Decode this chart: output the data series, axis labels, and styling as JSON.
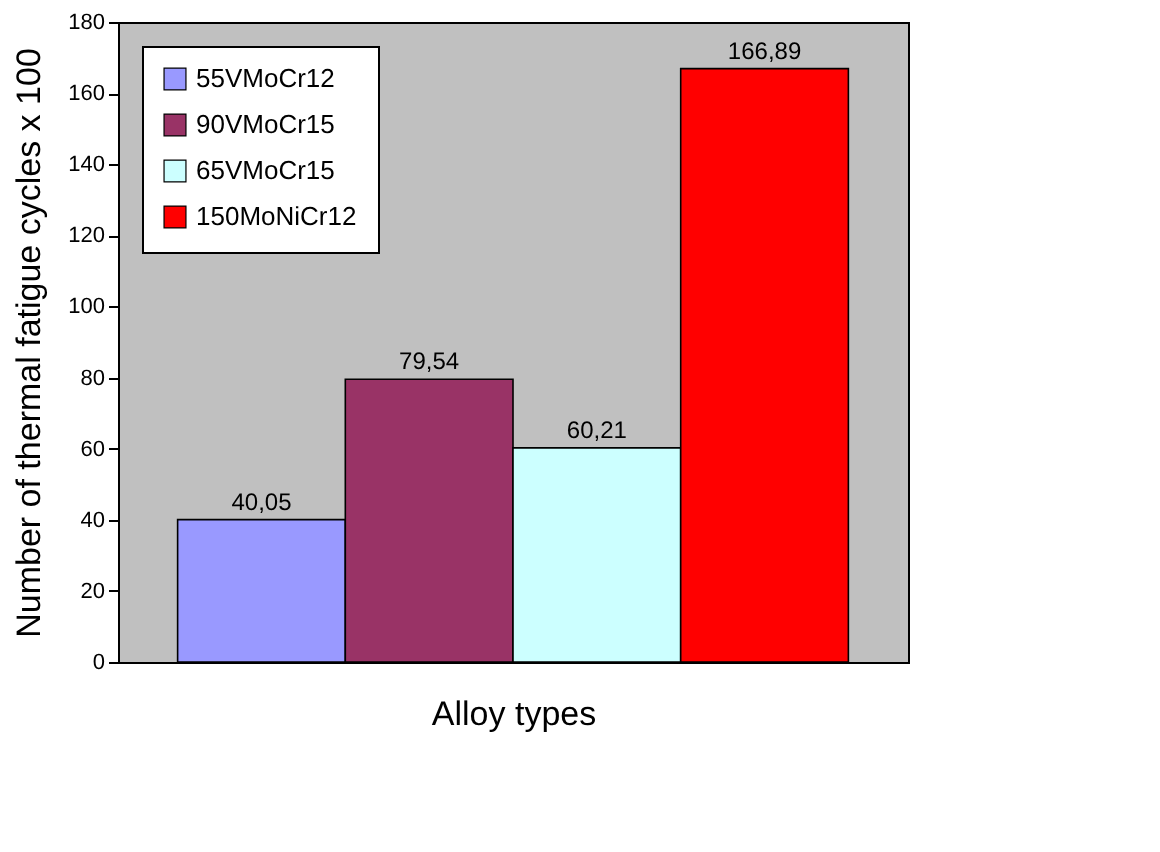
{
  "chart_data": {
    "type": "bar",
    "categories": [
      null
    ],
    "xlabel": "Alloy types",
    "ylabel": "Number of thermal fatigue cycles x 100",
    "ylim": [
      0,
      180
    ],
    "yticks": [
      0,
      20,
      40,
      60,
      80,
      100,
      120,
      140,
      160,
      180
    ],
    "grid": false,
    "legend": "top left",
    "series": [
      {
        "name": "55VMoCr12",
        "color": "#9999ff",
        "values": [
          40.05
        ],
        "value_labels": [
          "40,05"
        ]
      },
      {
        "name": "90VMoCr15",
        "color": "#993366",
        "values": [
          79.54
        ],
        "value_labels": [
          "79,54"
        ]
      },
      {
        "name": "65VMoCr15",
        "color": "#ccffff",
        "values": [
          60.21
        ],
        "value_labels": [
          "60,21"
        ]
      },
      {
        "name": "150MoNiCr12",
        "color": "#ff0000",
        "values": [
          166.89
        ],
        "value_labels": [
          "166,89"
        ]
      }
    ]
  }
}
